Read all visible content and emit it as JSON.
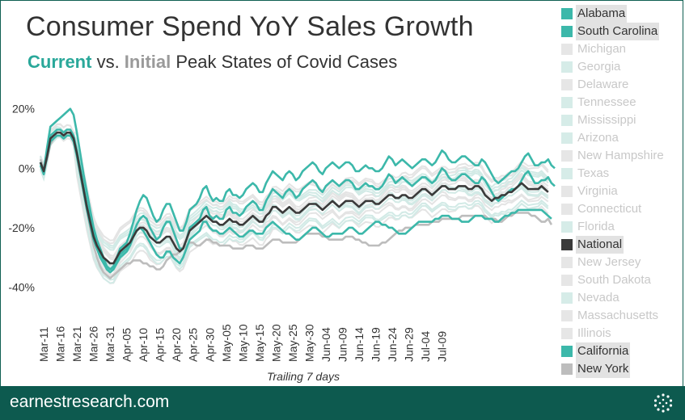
{
  "title": "Consumer Spend YoY Sales Growth",
  "subtitle": {
    "current": "Current",
    "vs": " vs. ",
    "initial": "Initial",
    "rest": " Peak States of Covid Cases"
  },
  "footer": {
    "text": "earnestresearch.com",
    "logo_icon": "earnest-dots-logo-icon"
  },
  "chart_data": {
    "type": "line",
    "title": "Consumer Spend YoY Sales Growth",
    "xlabel": "Trailing 7 days",
    "ylabel": "",
    "ylim": [
      -48,
      24
    ],
    "yticks": [
      20,
      0,
      -20,
      -40
    ],
    "ytick_labels": [
      "20%",
      "0%",
      "-20%",
      "-40%"
    ],
    "xticks": [
      "Mar-11",
      "Mar-16",
      "Mar-21",
      "Mar-26",
      "Mar-31",
      "Apr-05",
      "Apr-10",
      "Apr-15",
      "Apr-20",
      "Apr-25",
      "Apr-30",
      "May-05",
      "May-10",
      "May-15",
      "May-20",
      "May-25",
      "May-30",
      "Jun-04",
      "Jun-09",
      "Jun-14",
      "Jun-19",
      "Jun-24",
      "Jun-29",
      "Jul-04",
      "Jul-09"
    ],
    "x_start": "Mar-10",
    "x_step_days": 1,
    "grid": false,
    "legend_position": "right",
    "colors": {
      "current": "#3cb8aa",
      "initial": "#bdbdbd",
      "national": "#3a3a3a",
      "muted_teal": "#d2eae6",
      "muted_gray": "#e4e4e4"
    },
    "series": [
      {
        "name": "Alabama",
        "group": "current",
        "values": [
          2,
          -1,
          7,
          14,
          15,
          16,
          17,
          18,
          19,
          20,
          18,
          12,
          5,
          -2,
          -8,
          -14,
          -20,
          -24,
          -27,
          -30,
          -33,
          -34,
          -33,
          -30,
          -27,
          -26,
          -25,
          -22,
          -18,
          -14,
          -11,
          -9,
          -10,
          -13,
          -16,
          -18,
          -17,
          -14,
          -12,
          -12,
          -15,
          -18,
          -21,
          -21,
          -18,
          -14,
          -13,
          -12,
          -10,
          -7,
          -6,
          -9,
          -11,
          -10,
          -11,
          -11,
          -8,
          -7,
          -9,
          -9,
          -10,
          -9,
          -7,
          -6,
          -5,
          -6,
          -8,
          -8,
          -5,
          -3,
          -1,
          -2,
          -3,
          -4,
          -2,
          -1,
          -2,
          -4,
          -3,
          -1,
          0,
          1,
          2,
          1,
          -1,
          -2,
          0,
          1,
          2,
          1,
          0,
          1,
          2,
          2,
          1,
          -1,
          -1,
          0,
          1,
          0,
          0,
          -1,
          -1,
          0,
          2,
          4,
          3,
          1,
          2,
          3,
          2,
          1,
          0,
          1,
          2,
          3,
          3,
          2,
          1,
          2,
          4,
          6,
          5,
          3,
          2,
          2,
          3,
          4,
          4,
          3,
          2,
          1,
          1,
          3,
          2,
          0,
          -2,
          -4,
          -5,
          -4,
          -3,
          -2,
          -1,
          -1,
          0,
          2,
          4,
          5,
          3,
          1,
          1,
          2,
          2,
          3,
          1,
          0
        ]
      },
      {
        "name": "South Carolina",
        "group": "current",
        "values": [
          2,
          -2,
          5,
          11,
          12,
          13,
          13,
          12,
          13,
          13,
          11,
          6,
          0,
          -6,
          -12,
          -17,
          -22,
          -26,
          -29,
          -31,
          -33,
          -34,
          -33,
          -31,
          -29,
          -28,
          -27,
          -25,
          -22,
          -19,
          -17,
          -16,
          -17,
          -20,
          -22,
          -24,
          -23,
          -20,
          -18,
          -18,
          -21,
          -24,
          -27,
          -27,
          -24,
          -20,
          -19,
          -18,
          -17,
          -14,
          -13,
          -16,
          -17,
          -16,
          -17,
          -17,
          -14,
          -13,
          -15,
          -15,
          -16,
          -15,
          -13,
          -12,
          -11,
          -12,
          -14,
          -14,
          -11,
          -9,
          -7,
          -8,
          -9,
          -10,
          -8,
          -7,
          -8,
          -10,
          -9,
          -7,
          -6,
          -5,
          -4,
          -5,
          -7,
          -8,
          -6,
          -5,
          -4,
          -5,
          -6,
          -5,
          -4,
          -4,
          -5,
          -7,
          -7,
          -6,
          -5,
          -6,
          -6,
          -7,
          -7,
          -6,
          -4,
          -2,
          -3,
          -5,
          -4,
          -3,
          -4,
          -5,
          -6,
          -5,
          -4,
          -3,
          -3,
          -4,
          -5,
          -4,
          -2,
          0,
          -1,
          -3,
          -4,
          -4,
          -3,
          -2,
          -2,
          -3,
          -4,
          -5,
          -5,
          -3,
          -4,
          -6,
          -8,
          -10,
          -11,
          -10,
          -9,
          -8,
          -7,
          -7,
          -6,
          -4,
          -2,
          -1,
          -3,
          -5,
          -5,
          -4,
          -4,
          -3,
          -5,
          -6
        ]
      },
      {
        "name": "California",
        "group": "current",
        "values": [
          1,
          -2,
          4,
          9,
          10,
          11,
          11,
          10,
          11,
          11,
          9,
          4,
          -2,
          -8,
          -14,
          -19,
          -24,
          -27,
          -30,
          -32,
          -34,
          -35,
          -34,
          -32,
          -30,
          -29,
          -28,
          -26,
          -23,
          -21,
          -20,
          -21,
          -23,
          -25,
          -27,
          -29,
          -30,
          -30,
          -28,
          -28,
          -30,
          -31,
          -32,
          -30,
          -27,
          -24,
          -23,
          -22,
          -21,
          -18,
          -18,
          -20,
          -21,
          -21,
          -22,
          -22,
          -21,
          -20,
          -21,
          -22,
          -23,
          -23,
          -22,
          -21,
          -21,
          -22,
          -22,
          -22,
          -20,
          -19,
          -18,
          -19,
          -20,
          -21,
          -22,
          -22,
          -23,
          -24,
          -24,
          -23,
          -22,
          -21,
          -20,
          -20,
          -21,
          -22,
          -23,
          -23,
          -22,
          -22,
          -22,
          -22,
          -21,
          -20,
          -20,
          -21,
          -22,
          -22,
          -21,
          -20,
          -19,
          -18,
          -18,
          -19,
          -19,
          -20,
          -20,
          -21,
          -22,
          -22,
          -22,
          -21,
          -20,
          -19,
          -18,
          -18,
          -18,
          -18,
          -18,
          -17,
          -17,
          -16,
          -16,
          -16,
          -17,
          -17,
          -17,
          -18,
          -18,
          -18,
          -17,
          -16,
          -16,
          -16,
          -17,
          -17,
          -17,
          -18,
          -18,
          -17,
          -16,
          -16,
          -15,
          -15,
          -14,
          -14,
          -14,
          -14,
          -14,
          -14,
          -14,
          -14,
          -15,
          -16,
          -17
        ]
      },
      {
        "name": "New York",
        "group": "initial",
        "values": [
          3,
          0,
          3,
          8,
          10,
          11,
          11,
          10,
          11,
          11,
          9,
          4,
          -2,
          -8,
          -14,
          -20,
          -26,
          -30,
          -33,
          -35,
          -36,
          -37,
          -36,
          -35,
          -34,
          -33,
          -32,
          -32,
          -31,
          -31,
          -31,
          -32,
          -32,
          -33,
          -33,
          -34,
          -34,
          -33,
          -31,
          -30,
          -29,
          -29,
          -28,
          -27,
          -26,
          -25,
          -25,
          -26,
          -26,
          -25,
          -24,
          -24,
          -25,
          -25,
          -26,
          -26,
          -26,
          -26,
          -27,
          -27,
          -27,
          -27,
          -26,
          -26,
          -26,
          -27,
          -27,
          -27,
          -26,
          -25,
          -24,
          -24,
          -24,
          -25,
          -25,
          -25,
          -25,
          -25,
          -24,
          -23,
          -22,
          -22,
          -22,
          -22,
          -22,
          -23,
          -23,
          -24,
          -24,
          -24,
          -24,
          -24,
          -23,
          -23,
          -23,
          -24,
          -24,
          -25,
          -25,
          -26,
          -26,
          -26,
          -26,
          -25,
          -25,
          -24,
          -23,
          -22,
          -21,
          -21,
          -20,
          -20,
          -20,
          -19,
          -19,
          -19,
          -19,
          -19,
          -18,
          -18,
          -18,
          -17,
          -17,
          -17,
          -17,
          -17,
          -17,
          -16,
          -16,
          -16,
          -16,
          -16,
          -16,
          -16,
          -16,
          -17,
          -17,
          -17,
          -18,
          -18,
          -17,
          -16,
          -16,
          -15,
          -15,
          -15,
          -15,
          -15,
          -16,
          -16,
          -17,
          -18,
          -18,
          -17,
          -19
        ]
      },
      {
        "name": "National",
        "group": "national",
        "values": [
          2,
          -1,
          4,
          10,
          11,
          12,
          12,
          11,
          12,
          12,
          10,
          5,
          -1,
          -7,
          -13,
          -18,
          -23,
          -26,
          -28,
          -30,
          -31,
          -32,
          -32,
          -30,
          -28,
          -27,
          -26,
          -25,
          -23,
          -21,
          -20,
          -20,
          -21,
          -23,
          -24,
          -25,
          -25,
          -24,
          -23,
          -23,
          -25,
          -27,
          -28,
          -27,
          -24,
          -21,
          -20,
          -19,
          -18,
          -17,
          -16,
          -17,
          -18,
          -18,
          -19,
          -19,
          -18,
          -17,
          -18,
          -18,
          -19,
          -19,
          -18,
          -17,
          -16,
          -17,
          -18,
          -18,
          -16,
          -15,
          -13,
          -13,
          -14,
          -15,
          -14,
          -13,
          -14,
          -15,
          -15,
          -14,
          -13,
          -12,
          -12,
          -12,
          -13,
          -14,
          -13,
          -12,
          -11,
          -12,
          -13,
          -12,
          -11,
          -11,
          -11,
          -12,
          -13,
          -12,
          -11,
          -11,
          -11,
          -12,
          -12,
          -11,
          -10,
          -9,
          -9,
          -10,
          -10,
          -9,
          -9,
          -10,
          -10,
          -9,
          -8,
          -7,
          -7,
          -8,
          -9,
          -8,
          -7,
          -6,
          -6,
          -7,
          -7,
          -7,
          -6,
          -6,
          -6,
          -7,
          -7,
          -6,
          -6,
          -7,
          -9,
          -10,
          -11,
          -10,
          -10,
          -9,
          -9,
          -8,
          -8,
          -7,
          -6,
          -5,
          -6,
          -7,
          -7,
          -7,
          -7,
          -6,
          -7,
          -8
        ]
      },
      {
        "name": "Michigan",
        "group": "initial",
        "values": []
      },
      {
        "name": "Georgia",
        "group": "current",
        "values": []
      },
      {
        "name": "Delaware",
        "group": "initial",
        "values": []
      },
      {
        "name": "Tennessee",
        "group": "current",
        "values": []
      },
      {
        "name": "Mississippi",
        "group": "current",
        "values": []
      },
      {
        "name": "Arizona",
        "group": "current",
        "values": []
      },
      {
        "name": "New Hampshire",
        "group": "initial",
        "values": []
      },
      {
        "name": "Texas",
        "group": "current",
        "values": []
      },
      {
        "name": "Virginia",
        "group": "initial",
        "values": []
      },
      {
        "name": "Connecticut",
        "group": "initial",
        "values": []
      },
      {
        "name": "Florida",
        "group": "current",
        "values": []
      },
      {
        "name": "New Jersey",
        "group": "initial",
        "values": []
      },
      {
        "name": "South Dakota",
        "group": "initial",
        "values": []
      },
      {
        "name": "Nevada",
        "group": "current",
        "values": []
      },
      {
        "name": "Massachusetts",
        "group": "initial",
        "values": []
      },
      {
        "name": "Illinois",
        "group": "initial",
        "values": []
      }
    ]
  },
  "legend": [
    {
      "label": "Alabama",
      "swatch": "#3cb8aa",
      "highlight": true,
      "text_color": "#333333"
    },
    {
      "label": "South Carolina",
      "swatch": "#3cb8aa",
      "highlight": true,
      "text_color": "#333333"
    },
    {
      "label": "Michigan",
      "swatch": "#e6e6e6",
      "highlight": false,
      "text_color": "#c8c8c8"
    },
    {
      "label": "Georgia",
      "swatch": "#d6ece8",
      "highlight": false,
      "text_color": "#c8c8c8"
    },
    {
      "label": "Delaware",
      "swatch": "#e6e6e6",
      "highlight": false,
      "text_color": "#c8c8c8"
    },
    {
      "label": "Tennessee",
      "swatch": "#d6ece8",
      "highlight": false,
      "text_color": "#c8c8c8"
    },
    {
      "label": "Mississippi",
      "swatch": "#d6ece8",
      "highlight": false,
      "text_color": "#c8c8c8"
    },
    {
      "label": "Arizona",
      "swatch": "#d6ece8",
      "highlight": false,
      "text_color": "#c8c8c8"
    },
    {
      "label": "New Hampshire",
      "swatch": "#e6e6e6",
      "highlight": false,
      "text_color": "#c8c8c8"
    },
    {
      "label": "Texas",
      "swatch": "#d6ece8",
      "highlight": false,
      "text_color": "#c8c8c8"
    },
    {
      "label": "Virginia",
      "swatch": "#e6e6e6",
      "highlight": false,
      "text_color": "#c8c8c8"
    },
    {
      "label": "Connecticut",
      "swatch": "#e6e6e6",
      "highlight": false,
      "text_color": "#c8c8c8"
    },
    {
      "label": "Florida",
      "swatch": "#d6ece8",
      "highlight": false,
      "text_color": "#c8c8c8"
    },
    {
      "label": "National",
      "swatch": "#3a3a3a",
      "highlight": true,
      "text_color": "#333333"
    },
    {
      "label": "New Jersey",
      "swatch": "#e6e6e6",
      "highlight": false,
      "text_color": "#c8c8c8"
    },
    {
      "label": "South Dakota",
      "swatch": "#e6e6e6",
      "highlight": false,
      "text_color": "#c8c8c8"
    },
    {
      "label": "Nevada",
      "swatch": "#d6ece8",
      "highlight": false,
      "text_color": "#c8c8c8"
    },
    {
      "label": "Massachusetts",
      "swatch": "#e6e6e6",
      "highlight": false,
      "text_color": "#c8c8c8"
    },
    {
      "label": "Illinois",
      "swatch": "#e6e6e6",
      "highlight": false,
      "text_color": "#c8c8c8"
    },
    {
      "label": "California",
      "swatch": "#3cb8aa",
      "highlight": true,
      "text_color": "#333333"
    },
    {
      "label": "New York",
      "swatch": "#bdbdbd",
      "highlight": true,
      "text_color": "#333333"
    }
  ]
}
